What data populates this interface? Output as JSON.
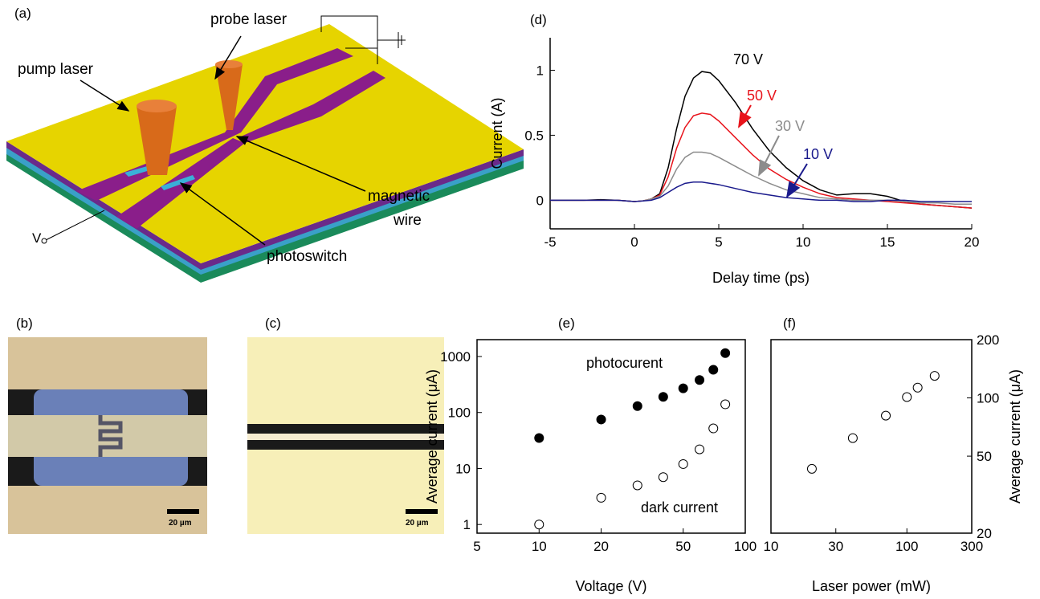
{
  "illustration": {
    "panel_a": "(a)",
    "probe_laser": "probe laser",
    "pump_laser": "pump laser",
    "magnetic": "magnetic",
    "wire": "wire",
    "photoswitch": "photoswitch",
    "v": "V",
    "panel_b": "(b)",
    "panel_c": "(c)",
    "scale_b": "20 µm",
    "scale_c": "20 µm"
  },
  "chart_data": [
    {
      "type": "line",
      "label": "(d)",
      "x_label": "Delay time (ps)",
      "y_label": "Current (A)",
      "xlim": [
        -5,
        20
      ],
      "ylim": [
        -0.22,
        1.25
      ],
      "xticks": [
        -5,
        0,
        5,
        10,
        15,
        20
      ],
      "yticks": [
        0,
        0.5,
        1
      ],
      "x": [
        -5,
        -4,
        -3,
        -2,
        -1,
        0,
        0.5,
        1,
        1.5,
        2,
        2.5,
        3,
        3.5,
        4,
        4.5,
        5,
        6,
        7,
        8,
        9,
        10,
        11,
        12,
        13,
        14,
        15,
        16,
        17,
        18,
        19,
        20
      ],
      "series": [
        {
          "name": "70 V",
          "color": "#000000",
          "values": [
            0,
            0,
            0,
            0.005,
            0,
            -0.01,
            -0.005,
            0.01,
            0.05,
            0.25,
            0.55,
            0.8,
            0.94,
            0.99,
            0.98,
            0.92,
            0.75,
            0.55,
            0.38,
            0.25,
            0.15,
            0.08,
            0.04,
            0.05,
            0.05,
            0.03,
            -0.01,
            -0.03,
            -0.04,
            -0.05,
            -0.06
          ]
        },
        {
          "name": "50 V",
          "color": "#e8141c",
          "values": [
            0,
            0,
            0,
            0,
            0,
            -0.01,
            -0.005,
            0.01,
            0.04,
            0.18,
            0.4,
            0.56,
            0.65,
            0.67,
            0.66,
            0.61,
            0.48,
            0.35,
            0.24,
            0.16,
            0.1,
            0.05,
            0.02,
            0.01,
            0,
            -0.01,
            -0.02,
            -0.03,
            -0.04,
            -0.05,
            -0.06
          ]
        },
        {
          "name": "30 V",
          "color": "#8c8c8c",
          "values": [
            0,
            0,
            0,
            0,
            0,
            -0.01,
            -0.005,
            0.01,
            0.03,
            0.11,
            0.24,
            0.33,
            0.37,
            0.37,
            0.36,
            0.33,
            0.26,
            0.19,
            0.13,
            0.08,
            0.05,
            0.02,
            0.01,
            0,
            0,
            0,
            -0.01,
            -0.02,
            -0.02,
            -0.03,
            -0.03
          ]
        },
        {
          "name": "10 V",
          "color": "#1a1a8c",
          "values": [
            0,
            0,
            0,
            0,
            0,
            -0.01,
            -0.005,
            0,
            0.02,
            0.06,
            0.1,
            0.13,
            0.14,
            0.14,
            0.13,
            0.12,
            0.09,
            0.06,
            0.04,
            0.02,
            0.01,
            0,
            0,
            -0.01,
            -0.01,
            0,
            0,
            -0.01,
            -0.01,
            -0.01,
            -0.01
          ]
        }
      ]
    },
    {
      "type": "scatter",
      "label": "(e)",
      "x_label": "Voltage (V)",
      "y_label": "Average current (μA)",
      "xscale": "log",
      "yscale": "log",
      "frame": true,
      "xlim": [
        5,
        100
      ],
      "ylim": [
        0.7,
        2000
      ],
      "xticks": [
        5,
        10,
        20,
        50,
        100
      ],
      "yticks": [
        1,
        10,
        100,
        1000
      ],
      "series": [
        {
          "name": "photocurent",
          "color": "#000000",
          "marker": "filled",
          "x": [
            10,
            20,
            30,
            40,
            50,
            60,
            70,
            80
          ],
          "values": [
            35,
            75,
            130,
            190,
            270,
            380,
            580,
            1150
          ]
        },
        {
          "name": "dark current",
          "color": "#000000",
          "marker": "open",
          "x": [
            10,
            20,
            30,
            40,
            50,
            60,
            70,
            80
          ],
          "values": [
            1,
            3,
            5,
            7,
            12,
            22,
            52,
            140
          ]
        }
      ]
    },
    {
      "type": "scatter",
      "label": "(f)",
      "x_label": "Laser power (mW)",
      "y_label": "Average current (μA)",
      "xscale": "log",
      "yscale": "log",
      "frame": true,
      "yaxis_side": "right",
      "xlim": [
        10,
        300
      ],
      "ylim": [
        20,
        200
      ],
      "xticks": [
        10,
        30,
        100,
        300
      ],
      "yticks": [
        20,
        50,
        100,
        200
      ],
      "series": [
        {
          "color": "#000000",
          "marker": "open",
          "x": [
            20,
            40,
            70,
            100,
            120,
            160
          ],
          "values": [
            43,
            62,
            81,
            101,
            113,
            130
          ]
        }
      ]
    }
  ]
}
